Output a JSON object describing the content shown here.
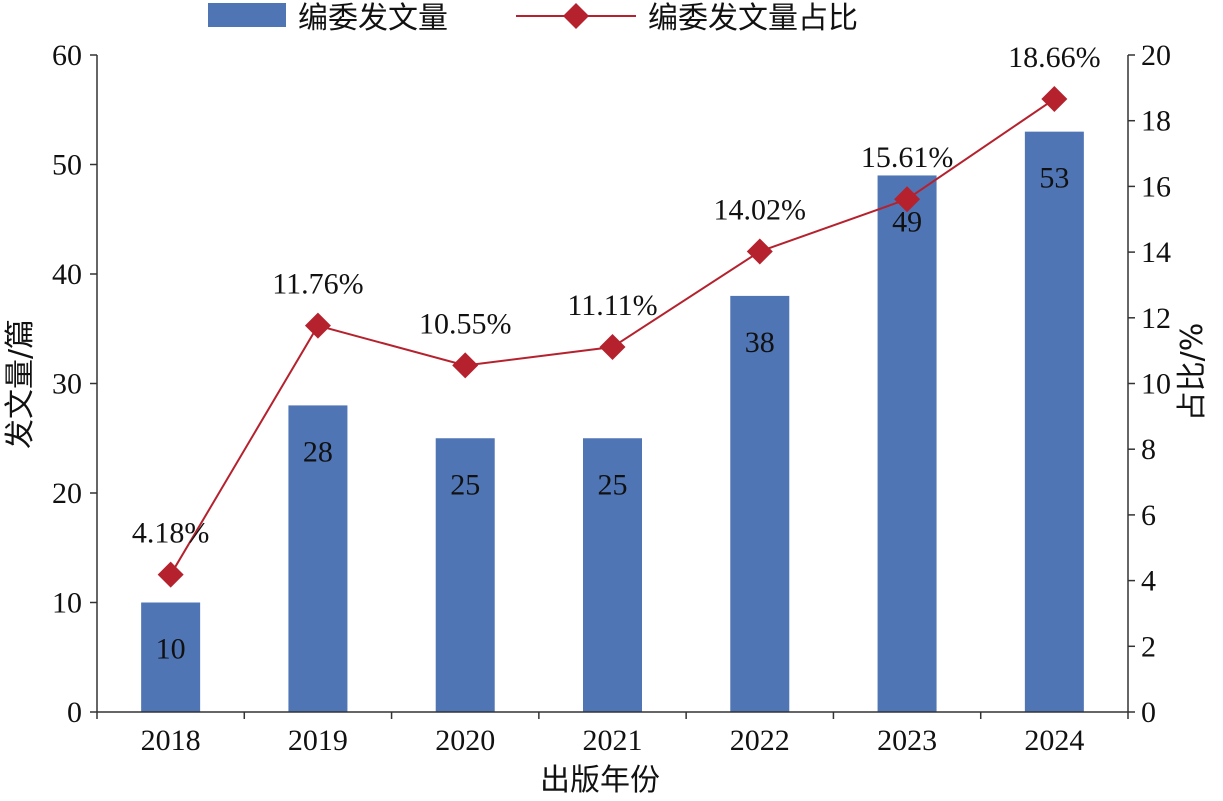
{
  "chart_data": {
    "type": "bar",
    "categories": [
      "2018",
      "2019",
      "2020",
      "2021",
      "2022",
      "2023",
      "2024"
    ],
    "series": [
      {
        "name": "编委发文量",
        "type": "bar",
        "axis": "left",
        "color": "#4f75b5",
        "values": [
          10,
          28,
          25,
          25,
          38,
          49,
          53
        ],
        "labels": [
          "10",
          "28",
          "25",
          "25",
          "38",
          "49",
          "53"
        ]
      },
      {
        "name": "编委发文量占比",
        "type": "line",
        "axis": "right",
        "color": "#b5222e",
        "marker": "diamond",
        "values": [
          4.18,
          11.76,
          10.55,
          11.11,
          14.02,
          15.61,
          18.66
        ],
        "labels": [
          "4.18%",
          "11.76%",
          "10.55%",
          "11.11%",
          "14.02%",
          "15.61%",
          "18.66%"
        ]
      }
    ],
    "xlabel": "出版年份",
    "ylabel": "发文量/篇",
    "y2label": "占比/%",
    "ylim": [
      0,
      60
    ],
    "yticks": [
      "0",
      "10",
      "20",
      "30",
      "40",
      "50",
      "60"
    ],
    "y2lim": [
      0,
      20
    ],
    "y2ticks": [
      "0",
      "2",
      "4",
      "6",
      "8",
      "10",
      "12",
      "14",
      "16",
      "18",
      "20"
    ],
    "grid": false,
    "legend_position": "top"
  }
}
